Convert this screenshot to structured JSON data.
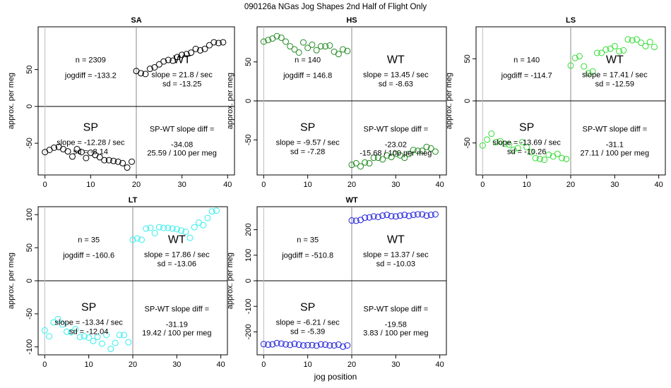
{
  "figure": {
    "title": "090126a    NGas Jog Shapes 2nd Half of Flight Only",
    "xlabel": "jog position"
  },
  "chart_data": [
    {
      "type": "scatter",
      "title": "SA",
      "ylabel": "approx. per meg",
      "color": "#000000",
      "xlim": [
        -1.5,
        41.5
      ],
      "ylim": [
        -93,
        108
      ],
      "xticks": [
        0,
        10,
        20,
        30,
        40
      ],
      "yticks": [
        -50,
        0,
        50
      ],
      "y": [
        -62,
        -59,
        -56,
        -55,
        -58,
        -61,
        -68,
        -58,
        -62,
        -70,
        -63,
        -66,
        -69,
        -73,
        -73,
        -74,
        -75,
        -77,
        -83,
        -75,
        48,
        45,
        44,
        51,
        53,
        57,
        61,
        63,
        62,
        67,
        70,
        71,
        73,
        78,
        76,
        78,
        83,
        87,
        86,
        87
      ],
      "n_text": "n = 2309",
      "jog_text": "jogdiff = -133.2",
      "sp_label": "SP",
      "sp_slope": "slope = -12.28 / sec",
      "sp_sd": "sd = -8.14",
      "wt_label": "WT",
      "wt_slope": "slope = 21.8 / sec",
      "wt_sd": "sd = -13.25",
      "diff_title": "SP-WT slope diff =",
      "diff_value": "-34.08",
      "diff_per": "25.59 / 100 per meg"
    },
    {
      "type": "scatter",
      "title": "HS",
      "ylabel": "approx. per meg",
      "color": "#228B22",
      "xlim": [
        -1.5,
        41.5
      ],
      "ylim": [
        -95,
        95
      ],
      "xticks": [
        0,
        10,
        20,
        30,
        40
      ],
      "yticks": [
        -50,
        0,
        50
      ],
      "y": [
        76,
        78,
        80,
        83,
        81,
        76,
        70,
        66,
        62,
        75,
        68,
        72,
        65,
        70,
        70,
        71,
        63,
        60,
        66,
        64,
        -82,
        -80,
        -84,
        -79,
        -80,
        -73,
        -73,
        -75,
        -70,
        -72,
        -68,
        -70,
        -73,
        -68,
        -63,
        -64,
        -64,
        -59,
        -61,
        -65
      ],
      "n_text": "n = 140",
      "jog_text": "jogdiff = 146.8",
      "sp_label": "SP",
      "sp_slope": "slope = -9.57 / sec",
      "sp_sd": "sd = -7.28",
      "wt_label": "WT",
      "wt_slope": "slope = 13.45 / sec",
      "wt_sd": "sd = -8.63",
      "diff_title": "SP-WT slope diff =",
      "diff_value": "-23.02",
      "diff_per": "-15.68 / 100 per meg"
    },
    {
      "type": "scatter",
      "title": "LS",
      "ylabel": "approx. per meg",
      "color": "#33DD33",
      "xlim": [
        -1.5,
        41.5
      ],
      "ylim": [
        -88,
        88
      ],
      "xticks": [
        0,
        10,
        20,
        30,
        40
      ],
      "yticks": [
        -50,
        0,
        50
      ],
      "y": [
        -53,
        -46,
        -39,
        -49,
        -48,
        -51,
        -52,
        -58,
        -56,
        -49,
        -55,
        -61,
        -68,
        -69,
        -70,
        -64,
        -66,
        -63,
        -68,
        -69,
        42,
        51,
        53,
        41,
        33,
        35,
        57,
        57,
        61,
        62,
        65,
        59,
        60,
        73,
        72,
        73,
        69,
        65,
        70,
        64
      ],
      "n_text": "n = 140",
      "jog_text": "jogdiff = -114.7",
      "sp_label": "SP",
      "sp_slope": "slope = -13.69 / sec",
      "sp_sd": "sd = -10.26",
      "wt_label": "WT",
      "wt_slope": "slope = 17.41 / sec",
      "wt_sd": "sd = -12.59",
      "diff_title": "SP-WT slope diff =",
      "diff_value": "-31.1",
      "diff_per": "27.11 / 100 per meg"
    },
    {
      "type": "scatter",
      "title": "LT",
      "ylabel": "approx. per meg",
      "color": "#33EEEE",
      "xlim": [
        -1.5,
        41.5
      ],
      "ylim": [
        -112,
        112
      ],
      "xticks": [
        0,
        10,
        20,
        30,
        40
      ],
      "yticks": [
        -100,
        -50,
        0,
        50,
        100
      ],
      "y": [
        -75,
        -84,
        -63,
        -58,
        -66,
        -77,
        -78,
        -73,
        -85,
        -84,
        -86,
        -91,
        -85,
        -95,
        -82,
        -103,
        -94,
        -82,
        -82,
        -93,
        62,
        64,
        62,
        79,
        80,
        72,
        81,
        80,
        80,
        79,
        78,
        76,
        74,
        65,
        81,
        88,
        84,
        95,
        105,
        106
      ],
      "n_text": "n = 35",
      "jog_text": "jogdiff = -160.6",
      "sp_label": "SP",
      "sp_slope": "slope = -13.34 / sec",
      "sp_sd": "sd = -12.04",
      "wt_label": "WT",
      "wt_slope": "slope = 17.86 / sec",
      "wt_sd": "sd = -13.06",
      "diff_title": "SP-WT slope diff =",
      "diff_value": "-31.19",
      "diff_per": "19.42 / 100 per meg"
    },
    {
      "type": "scatter",
      "title": "WT",
      "ylabel": "approx. per meg",
      "color": "#2222DD",
      "xlim": [
        -1.5,
        41.5
      ],
      "ylim": [
        -290,
        290
      ],
      "xticks": [
        0,
        10,
        20,
        30,
        40
      ],
      "yticks": [
        -200,
        -100,
        0,
        100,
        200
      ],
      "y": [
        -248,
        -250,
        -249,
        -244,
        -246,
        -249,
        -251,
        -247,
        -250,
        -253,
        -252,
        -252,
        -254,
        -249,
        -250,
        -253,
        -253,
        -250,
        -258,
        -253,
        236,
        235,
        238,
        247,
        248,
        252,
        250,
        255,
        258,
        253,
        252,
        255,
        258,
        254,
        258,
        260,
        260,
        255,
        258,
        260
      ],
      "n_text": "n = 35",
      "jog_text": "jogdiff = -510.8",
      "sp_label": "SP",
      "sp_slope": "slope = -6.21 / sec",
      "sp_sd": "sd = -5.39",
      "wt_label": "WT",
      "wt_slope": "slope = 13.37 / sec",
      "wt_sd": "sd = -10.03",
      "diff_title": "SP-WT slope diff =",
      "diff_value": "-19.58",
      "diff_per": "3.83 / 100 per meg"
    }
  ]
}
